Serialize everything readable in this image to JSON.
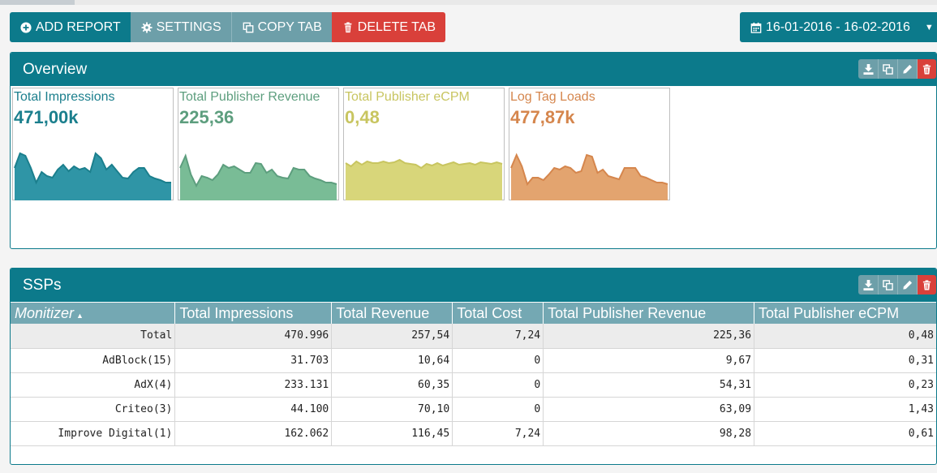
{
  "toolbar": {
    "add_report": "ADD REPORT",
    "settings": "SETTINGS",
    "copy_tab": "COPY TAB",
    "delete_tab": "DELETE TAB"
  },
  "date_range": "16-01-2016 - 16-02-2016",
  "overview": {
    "title": "Overview",
    "tiles": [
      {
        "label": "Total Impressions",
        "value": "471,00k",
        "color": "#1b7f8d",
        "fill": "#2f95a6",
        "series": [
          40,
          58,
          55,
          40,
          22,
          35,
          30,
          28,
          38,
          44,
          36,
          42,
          38,
          40,
          35,
          58,
          52,
          38,
          44,
          36,
          28,
          27,
          35,
          40,
          40,
          30,
          27,
          25,
          22,
          22
        ]
      },
      {
        "label": "Total Publisher Revenue",
        "value": "225,36",
        "color": "#5d9e7e",
        "fill": "#79bc96",
        "series": [
          40,
          55,
          32,
          18,
          30,
          28,
          25,
          32,
          44,
          40,
          42,
          38,
          34,
          34,
          46,
          45,
          34,
          38,
          30,
          28,
          27,
          40,
          38,
          38,
          30,
          27,
          25,
          22,
          22,
          20
        ]
      },
      {
        "label": "Total Publisher eCPM",
        "value": "0,48",
        "color": "#c8c560",
        "fill": "#d8d67a",
        "series": [
          46,
          42,
          48,
          44,
          48,
          46,
          46,
          48,
          46,
          47,
          50,
          46,
          45,
          44,
          40,
          45,
          43,
          46,
          43,
          45,
          47,
          44,
          45,
          46,
          44,
          47,
          46,
          45,
          47,
          45
        ]
      },
      {
        "label": "Log Tag Loads",
        "value": "477,87k",
        "color": "#d5864d",
        "fill": "#e3a46f",
        "series": [
          40,
          56,
          42,
          20,
          28,
          28,
          25,
          32,
          40,
          38,
          42,
          40,
          34,
          36,
          56,
          54,
          34,
          38,
          30,
          28,
          26,
          40,
          40,
          40,
          30,
          28,
          25,
          22,
          22,
          20
        ]
      }
    ]
  },
  "ssps": {
    "title": "SSPs",
    "columns": [
      "Monitizer",
      "Total Impressions",
      "Total Revenue",
      "Total Cost",
      "Total Publisher Revenue",
      "Total Publisher eCPM"
    ],
    "sort_indicator": "▲",
    "rows": [
      [
        "Total",
        "470.996",
        "257,54",
        "7,24",
        "225,36",
        "0,48"
      ],
      [
        "AdBlock(15)",
        "31.703",
        "10,64",
        "0",
        "9,67",
        "0,31"
      ],
      [
        "AdX(4)",
        "233.131",
        "60,35",
        "0",
        "54,31",
        "0,23"
      ],
      [
        "Criteo(3)",
        "44.100",
        "70,10",
        "0",
        "63,09",
        "1,43"
      ],
      [
        "Improve Digital(1)",
        "162.062",
        "116,45",
        "7,24",
        "98,28",
        "0,61"
      ]
    ]
  },
  "icons": {
    "add": "plus-circle-icon",
    "settings": "gear-icon",
    "copy": "copy-icon",
    "delete": "trash-icon",
    "calendar": "calendar-icon",
    "caret": "caret-down-icon",
    "download": "download-icon",
    "edit": "pencil-icon"
  },
  "colors": {
    "accent": "#0c7a8b",
    "secondary": "#6d9fa9",
    "danger": "#d9403a",
    "table_header": "#74a8b3"
  }
}
